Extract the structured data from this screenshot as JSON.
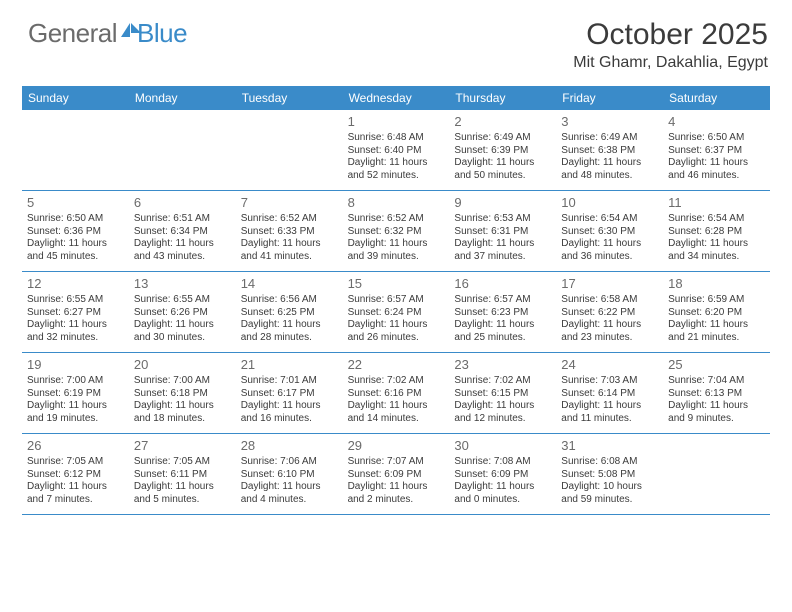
{
  "brand": {
    "text1": "General",
    "text2": "Blue"
  },
  "title": "October 2025",
  "subtitle": "Mit Ghamr, Dakahlia, Egypt",
  "colors": {
    "accent": "#3a8bc9",
    "text": "#3b3b3b",
    "muted": "#6b6b6b",
    "background": "#ffffff"
  },
  "calendar": {
    "day_names": [
      "Sunday",
      "Monday",
      "Tuesday",
      "Wednesday",
      "Thursday",
      "Friday",
      "Saturday"
    ],
    "weeks": [
      [
        null,
        null,
        null,
        {
          "n": "1",
          "lines": [
            "Sunrise: 6:48 AM",
            "Sunset: 6:40 PM",
            "Daylight: 11 hours",
            "and 52 minutes."
          ]
        },
        {
          "n": "2",
          "lines": [
            "Sunrise: 6:49 AM",
            "Sunset: 6:39 PM",
            "Daylight: 11 hours",
            "and 50 minutes."
          ]
        },
        {
          "n": "3",
          "lines": [
            "Sunrise: 6:49 AM",
            "Sunset: 6:38 PM",
            "Daylight: 11 hours",
            "and 48 minutes."
          ]
        },
        {
          "n": "4",
          "lines": [
            "Sunrise: 6:50 AM",
            "Sunset: 6:37 PM",
            "Daylight: 11 hours",
            "and 46 minutes."
          ]
        }
      ],
      [
        {
          "n": "5",
          "lines": [
            "Sunrise: 6:50 AM",
            "Sunset: 6:36 PM",
            "Daylight: 11 hours",
            "and 45 minutes."
          ]
        },
        {
          "n": "6",
          "lines": [
            "Sunrise: 6:51 AM",
            "Sunset: 6:34 PM",
            "Daylight: 11 hours",
            "and 43 minutes."
          ]
        },
        {
          "n": "7",
          "lines": [
            "Sunrise: 6:52 AM",
            "Sunset: 6:33 PM",
            "Daylight: 11 hours",
            "and 41 minutes."
          ]
        },
        {
          "n": "8",
          "lines": [
            "Sunrise: 6:52 AM",
            "Sunset: 6:32 PM",
            "Daylight: 11 hours",
            "and 39 minutes."
          ]
        },
        {
          "n": "9",
          "lines": [
            "Sunrise: 6:53 AM",
            "Sunset: 6:31 PM",
            "Daylight: 11 hours",
            "and 37 minutes."
          ]
        },
        {
          "n": "10",
          "lines": [
            "Sunrise: 6:54 AM",
            "Sunset: 6:30 PM",
            "Daylight: 11 hours",
            "and 36 minutes."
          ]
        },
        {
          "n": "11",
          "lines": [
            "Sunrise: 6:54 AM",
            "Sunset: 6:28 PM",
            "Daylight: 11 hours",
            "and 34 minutes."
          ]
        }
      ],
      [
        {
          "n": "12",
          "lines": [
            "Sunrise: 6:55 AM",
            "Sunset: 6:27 PM",
            "Daylight: 11 hours",
            "and 32 minutes."
          ]
        },
        {
          "n": "13",
          "lines": [
            "Sunrise: 6:55 AM",
            "Sunset: 6:26 PM",
            "Daylight: 11 hours",
            "and 30 minutes."
          ]
        },
        {
          "n": "14",
          "lines": [
            "Sunrise: 6:56 AM",
            "Sunset: 6:25 PM",
            "Daylight: 11 hours",
            "and 28 minutes."
          ]
        },
        {
          "n": "15",
          "lines": [
            "Sunrise: 6:57 AM",
            "Sunset: 6:24 PM",
            "Daylight: 11 hours",
            "and 26 minutes."
          ]
        },
        {
          "n": "16",
          "lines": [
            "Sunrise: 6:57 AM",
            "Sunset: 6:23 PM",
            "Daylight: 11 hours",
            "and 25 minutes."
          ]
        },
        {
          "n": "17",
          "lines": [
            "Sunrise: 6:58 AM",
            "Sunset: 6:22 PM",
            "Daylight: 11 hours",
            "and 23 minutes."
          ]
        },
        {
          "n": "18",
          "lines": [
            "Sunrise: 6:59 AM",
            "Sunset: 6:20 PM",
            "Daylight: 11 hours",
            "and 21 minutes."
          ]
        }
      ],
      [
        {
          "n": "19",
          "lines": [
            "Sunrise: 7:00 AM",
            "Sunset: 6:19 PM",
            "Daylight: 11 hours",
            "and 19 minutes."
          ]
        },
        {
          "n": "20",
          "lines": [
            "Sunrise: 7:00 AM",
            "Sunset: 6:18 PM",
            "Daylight: 11 hours",
            "and 18 minutes."
          ]
        },
        {
          "n": "21",
          "lines": [
            "Sunrise: 7:01 AM",
            "Sunset: 6:17 PM",
            "Daylight: 11 hours",
            "and 16 minutes."
          ]
        },
        {
          "n": "22",
          "lines": [
            "Sunrise: 7:02 AM",
            "Sunset: 6:16 PM",
            "Daylight: 11 hours",
            "and 14 minutes."
          ]
        },
        {
          "n": "23",
          "lines": [
            "Sunrise: 7:02 AM",
            "Sunset: 6:15 PM",
            "Daylight: 11 hours",
            "and 12 minutes."
          ]
        },
        {
          "n": "24",
          "lines": [
            "Sunrise: 7:03 AM",
            "Sunset: 6:14 PM",
            "Daylight: 11 hours",
            "and 11 minutes."
          ]
        },
        {
          "n": "25",
          "lines": [
            "Sunrise: 7:04 AM",
            "Sunset: 6:13 PM",
            "Daylight: 11 hours",
            "and 9 minutes."
          ]
        }
      ],
      [
        {
          "n": "26",
          "lines": [
            "Sunrise: 7:05 AM",
            "Sunset: 6:12 PM",
            "Daylight: 11 hours",
            "and 7 minutes."
          ]
        },
        {
          "n": "27",
          "lines": [
            "Sunrise: 7:05 AM",
            "Sunset: 6:11 PM",
            "Daylight: 11 hours",
            "and 5 minutes."
          ]
        },
        {
          "n": "28",
          "lines": [
            "Sunrise: 7:06 AM",
            "Sunset: 6:10 PM",
            "Daylight: 11 hours",
            "and 4 minutes."
          ]
        },
        {
          "n": "29",
          "lines": [
            "Sunrise: 7:07 AM",
            "Sunset: 6:09 PM",
            "Daylight: 11 hours",
            "and 2 minutes."
          ]
        },
        {
          "n": "30",
          "lines": [
            "Sunrise: 7:08 AM",
            "Sunset: 6:09 PM",
            "Daylight: 11 hours",
            "and 0 minutes."
          ]
        },
        {
          "n": "31",
          "lines": [
            "Sunrise: 6:08 AM",
            "Sunset: 5:08 PM",
            "Daylight: 10 hours",
            "and 59 minutes."
          ]
        },
        null
      ]
    ]
  }
}
